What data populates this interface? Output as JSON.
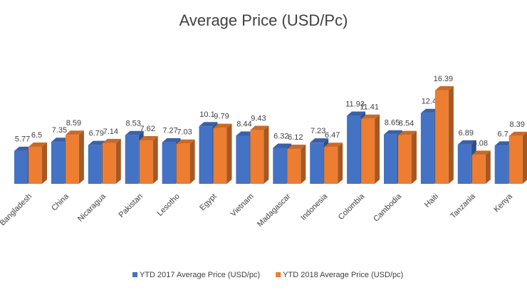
{
  "chart_data": {
    "type": "bar3d",
    "title": "Average Price (USD/Pc)",
    "categories": [
      "Bangladesh",
      "China",
      "Nicaragua",
      "Pakistan",
      "Lesotho",
      "Egypt",
      "Vietnam",
      "Madagascar",
      "Indonesia",
      "Colombia",
      "Cambodia",
      "Haiti",
      "Tanzania",
      "Kenya"
    ],
    "series": [
      {
        "name": "YTD 2017 Average Price (USD/pc)",
        "color": "#4472c4",
        "values": [
          5.77,
          7.35,
          6.79,
          8.53,
          7.27,
          10.1,
          8.44,
          6.32,
          7.23,
          11.93,
          8.65,
          12.4,
          6.89,
          6.7
        ]
      },
      {
        "name": "YTD 2018 Average Price (USD/pc)",
        "color": "#ed7d31",
        "values": [
          6.5,
          8.59,
          7.14,
          7.62,
          7.03,
          9.79,
          9.43,
          6.12,
          6.47,
          11.41,
          8.54,
          16.39,
          5.08,
          8.39
        ]
      }
    ],
    "legend": "bottom"
  }
}
